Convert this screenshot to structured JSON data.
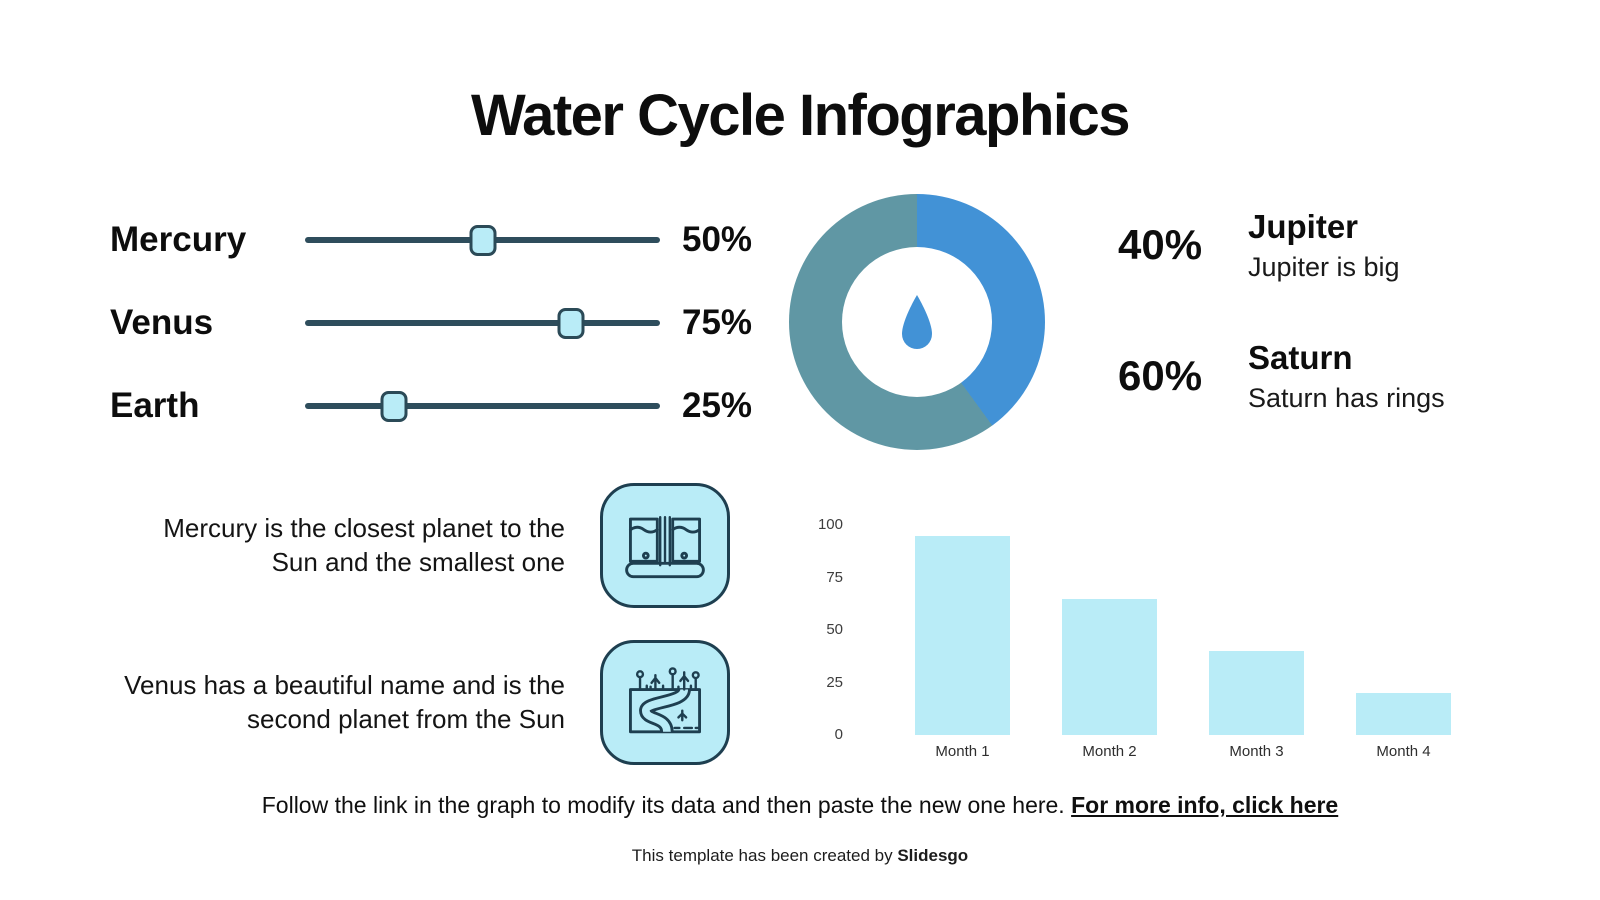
{
  "title": "Water Cycle Infographics",
  "colors": {
    "accent_blue": "#4292d6",
    "teal": "#6097a4",
    "slider_track": "#2e4d5c",
    "light_cyan": "#b9ecf7",
    "icon_stroke": "#1e3f50",
    "text": "#0d0d0d"
  },
  "sliders": [
    {
      "label": "Mercury",
      "value": 50,
      "display": "50%"
    },
    {
      "label": "Venus",
      "value": 75,
      "display": "75%"
    },
    {
      "label": "Earth",
      "value": 25,
      "display": "25%"
    }
  ],
  "donut": {
    "legend": [
      {
        "pct": "40%",
        "name": "Jupiter",
        "desc": "Jupiter is big"
      },
      {
        "pct": "60%",
        "name": "Saturn",
        "desc": "Saturn has rings"
      }
    ]
  },
  "features": [
    {
      "text": "Mercury is the closest planet to the Sun and the smallest one",
      "icon": "waterfall-icon"
    },
    {
      "text": "Venus has a beautiful name and is the second planet from the Sun",
      "icon": "river-icon"
    }
  ],
  "chart_data": [
    {
      "type": "pie",
      "subtype": "donut",
      "title": "",
      "slices": [
        {
          "label": "Jupiter",
          "value": 40
        },
        {
          "label": "Saturn",
          "value": 60
        }
      ],
      "colors": [
        "#4292d6",
        "#6097a4"
      ],
      "center_icon": "water-drop",
      "legend_position": "right"
    },
    {
      "type": "bar",
      "categories": [
        "Month 1",
        "Month 2",
        "Month 3",
        "Month 4"
      ],
      "values": [
        95,
        65,
        40,
        20
      ],
      "title": "",
      "xlabel": "",
      "ylabel": "",
      "ylim": [
        0,
        100
      ],
      "yticks": [
        0,
        25,
        50,
        75,
        100
      ],
      "bar_color": "#b9ecf7",
      "grid": false
    }
  ],
  "footer": {
    "note": "Follow the link in the graph to modify its data and then paste the new one here. ",
    "link": "For more info, click here",
    "credit_prefix": "This template has been created by ",
    "credit_brand": "Slidesgo"
  }
}
